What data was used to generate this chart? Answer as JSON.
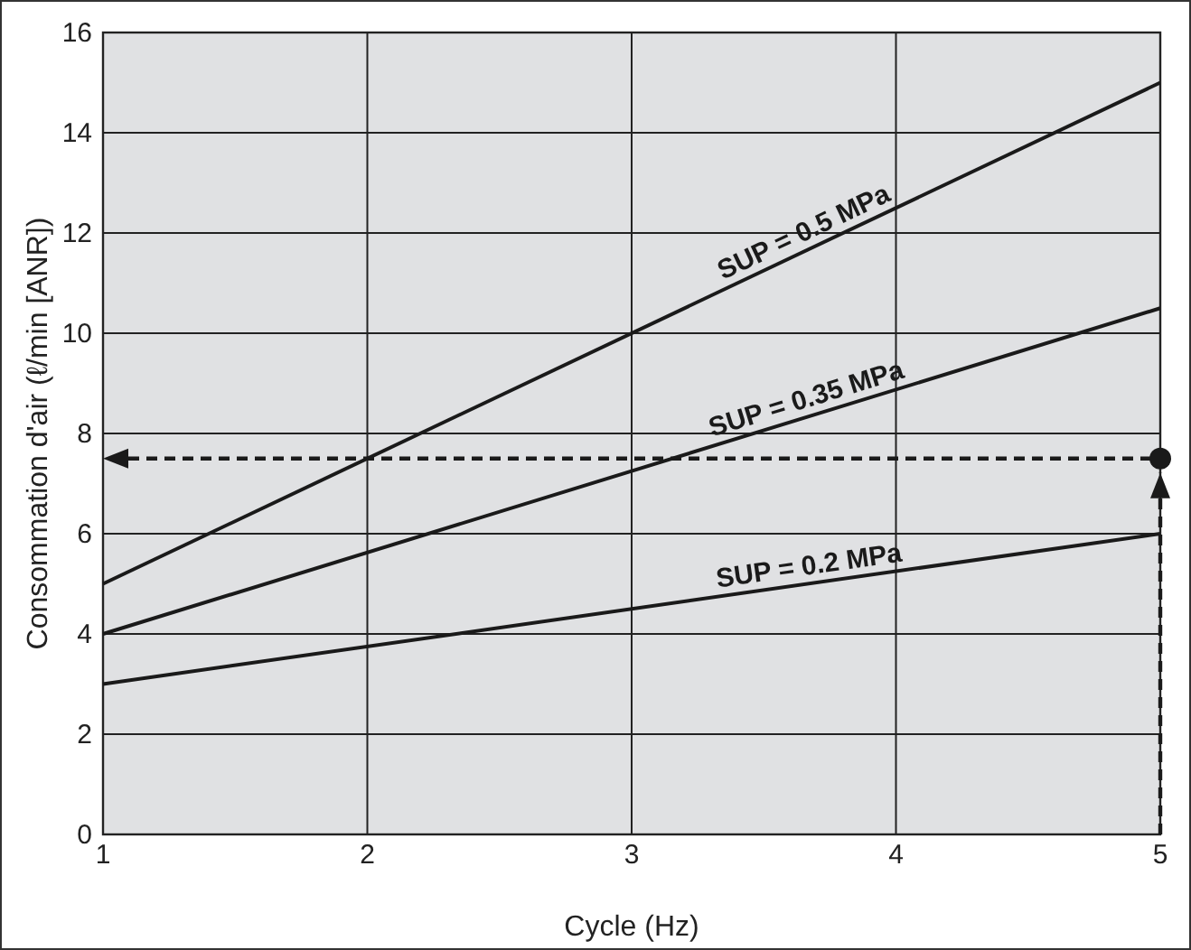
{
  "chart_data": {
    "type": "line",
    "xlabel": "Cycle (Hz)",
    "ylabel": "Consommation d'air (ℓ/min [ANR])",
    "xlim": [
      1,
      5
    ],
    "xticks": [
      1,
      2,
      3,
      4,
      5
    ],
    "ylim": [
      0,
      16
    ],
    "yticks": [
      0,
      2,
      4,
      6,
      8,
      10,
      12,
      14,
      16
    ],
    "grid": true,
    "marker": "none",
    "x": [
      1,
      5
    ],
    "ref_lines": [
      {
        "axis": "y",
        "value": 7.5,
        "color": "#1a1a1a",
        "line_style": "dashed"
      }
    ],
    "series": [
      {
        "name": "SUP = 0.5 MPa",
        "color": "#1a1a1a",
        "values": [
          5,
          15
        ]
      },
      {
        "name": "SUP = 0.35 MPa",
        "color": "#1a1a1a",
        "values": [
          4,
          10.5
        ]
      },
      {
        "name": "SUP = 0.2 MPa",
        "color": "#1a1a1a",
        "values": [
          3,
          6
        ]
      }
    ]
  }
}
